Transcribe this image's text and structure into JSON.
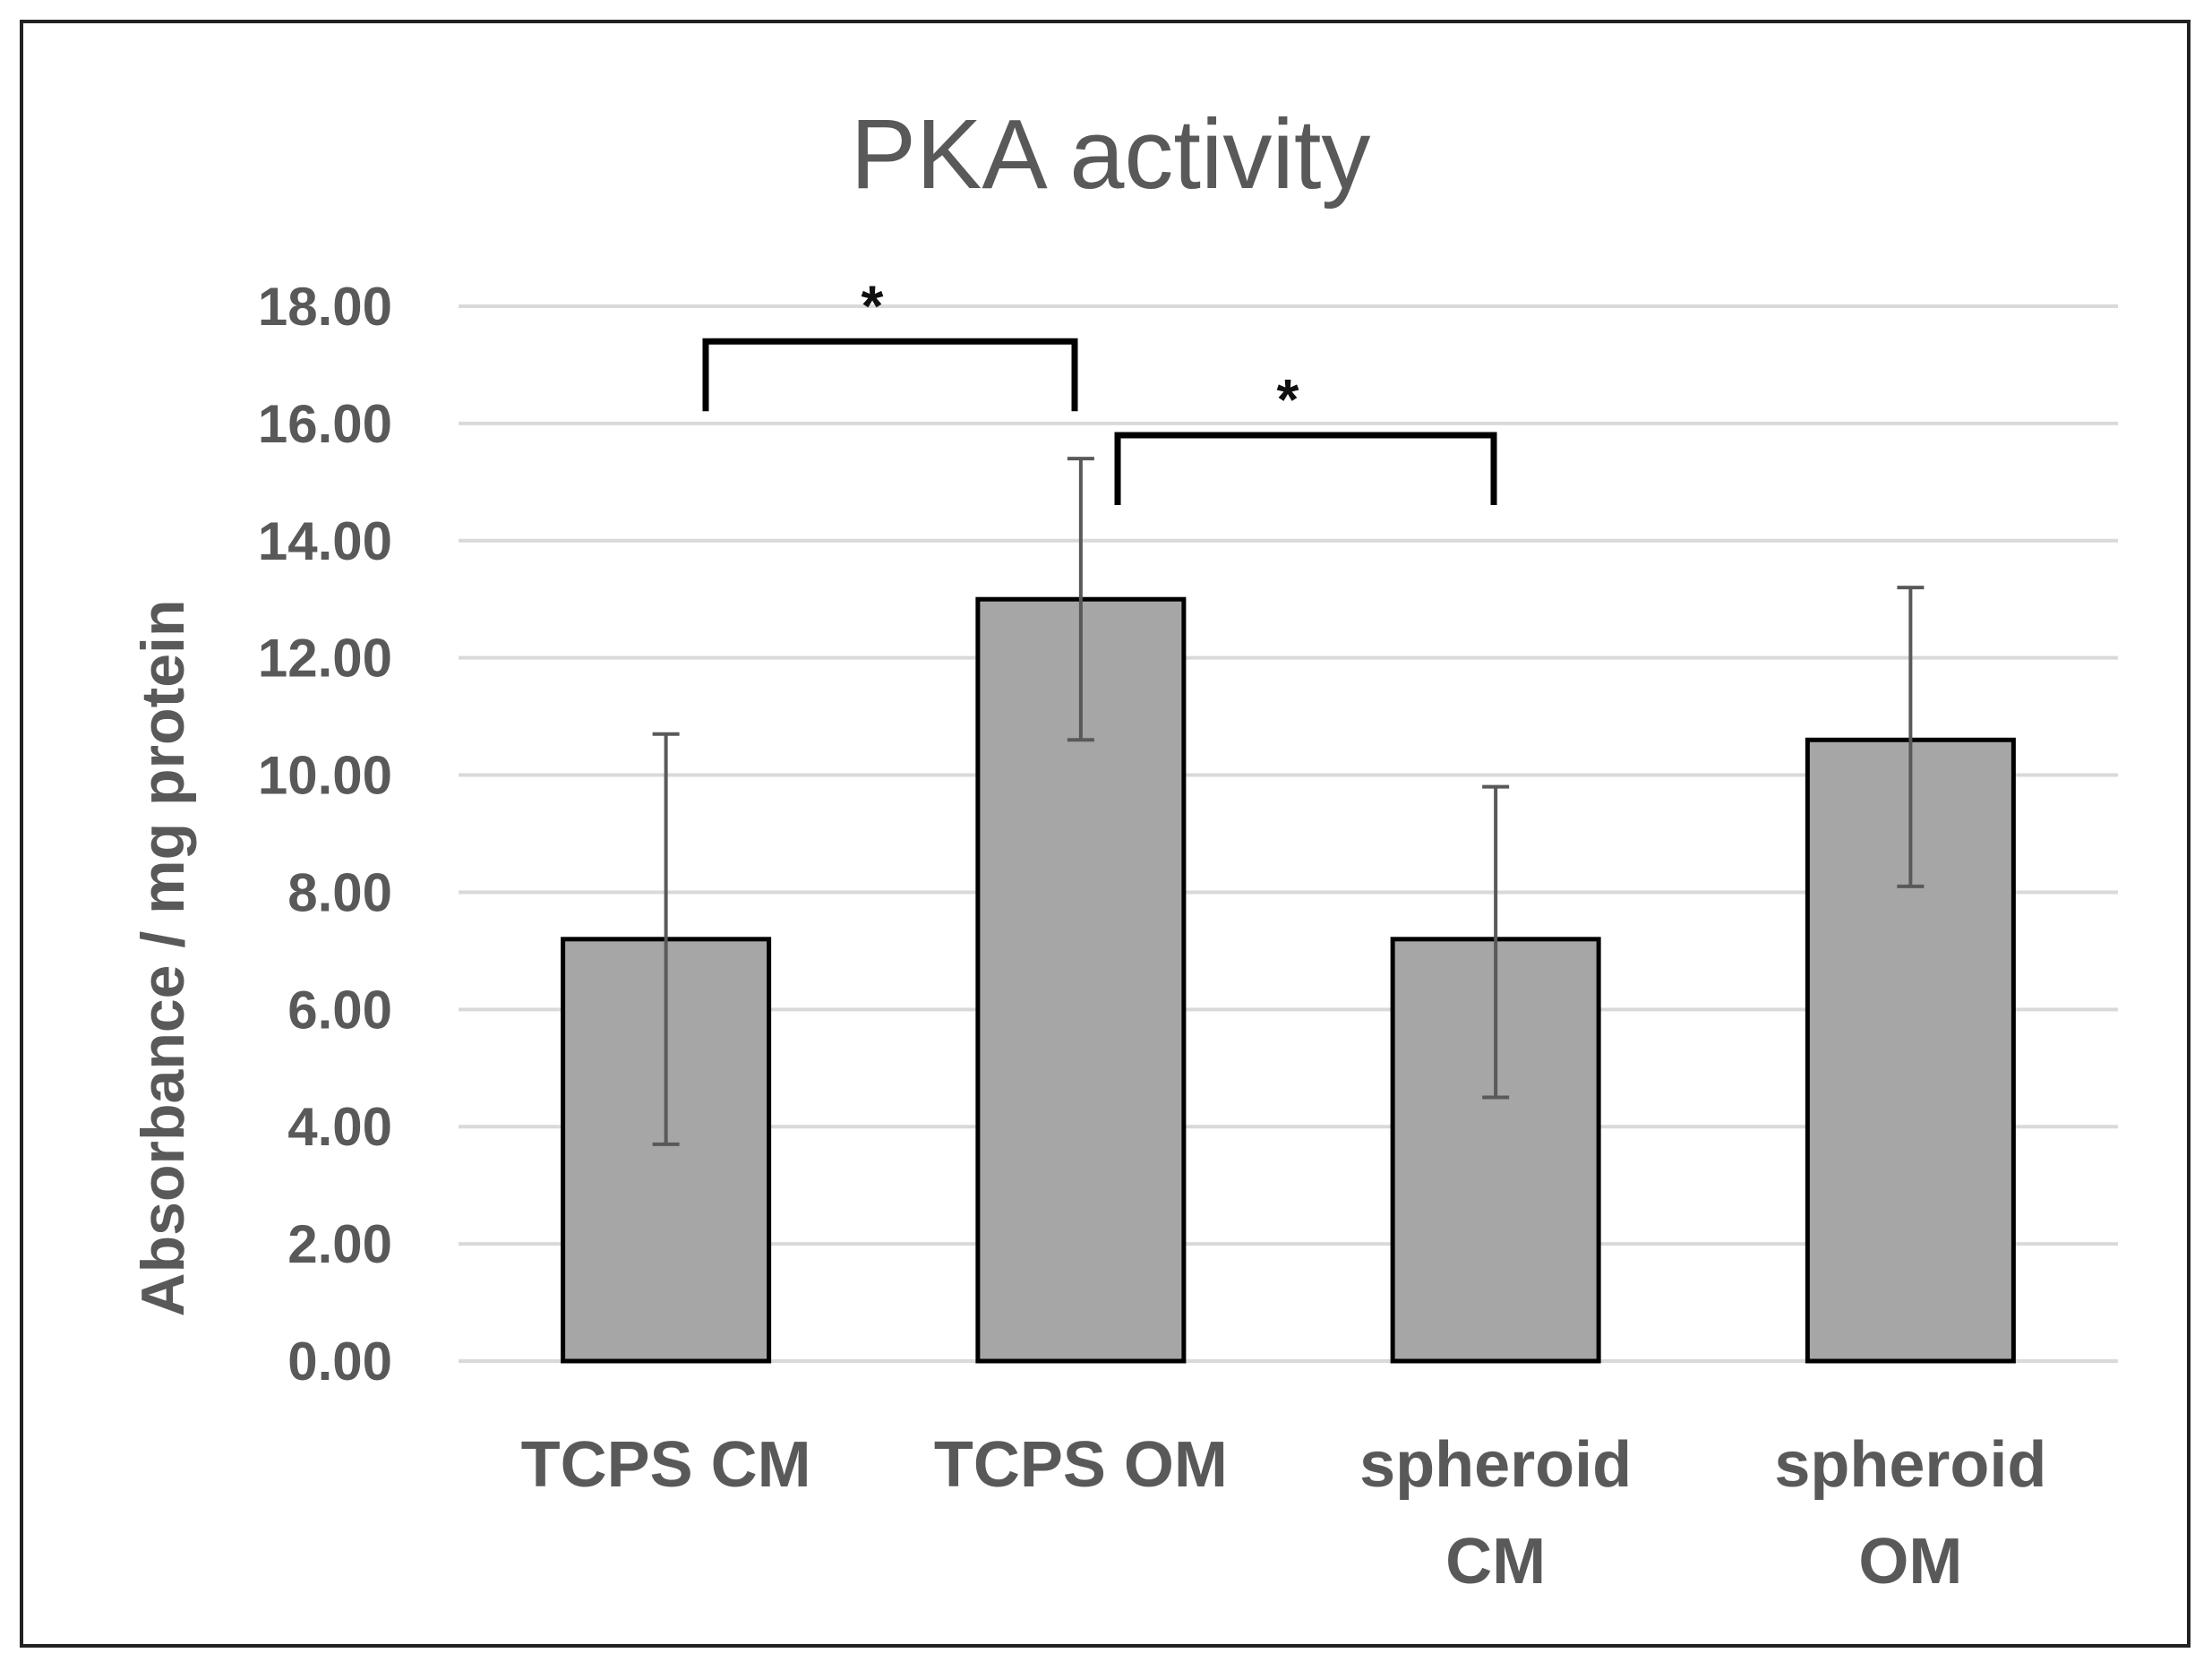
{
  "chart_data": {
    "type": "bar",
    "title": "PKA activity",
    "xlabel": "",
    "ylabel": "Absorbance / mg protein",
    "ylim": [
      0,
      18
    ],
    "yticks": [
      "0.00",
      "2.00",
      "4.00",
      "6.00",
      "8.00",
      "10.00",
      "12.00",
      "14.00",
      "16.00",
      "18.00"
    ],
    "categories": [
      [
        "TCPS CM"
      ],
      [
        "TCPS OM"
      ],
      [
        "spheroid",
        "CM"
      ],
      [
        "spheroid",
        "OM"
      ]
    ],
    "values": [
      7.2,
      13.0,
      7.2,
      10.6
    ],
    "error_low": [
      3.7,
      10.6,
      4.5,
      8.1
    ],
    "error_high": [
      10.7,
      15.4,
      9.8,
      13.2
    ],
    "bar_color": "#a6a6a6",
    "grid": true,
    "legend": "none",
    "significance": [
      {
        "from": 0,
        "to": 1,
        "level": 17.4,
        "label": "*"
      },
      {
        "from": 1,
        "to": 2,
        "level": 15.8,
        "label": "*"
      }
    ]
  }
}
